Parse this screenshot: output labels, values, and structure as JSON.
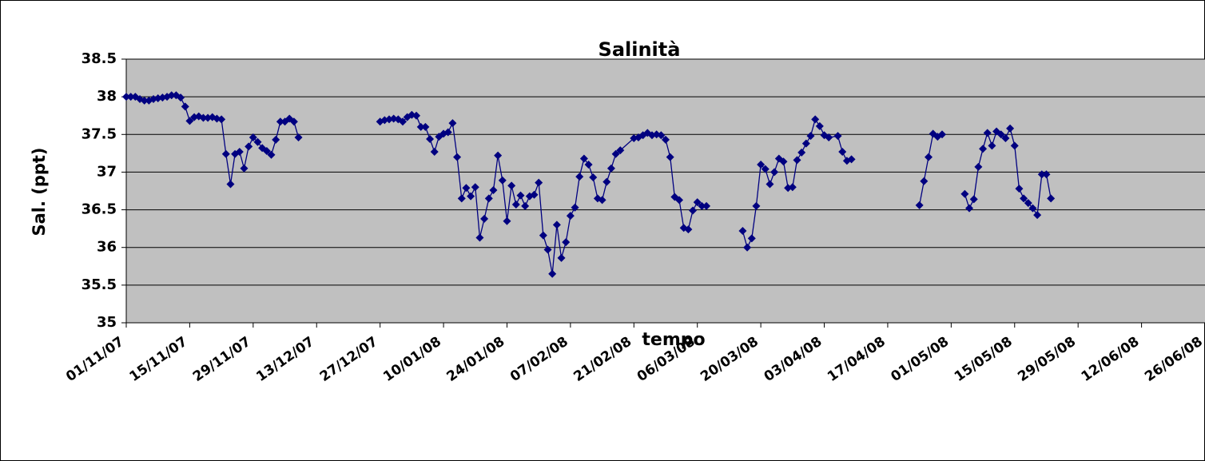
{
  "chart_data": {
    "type": "line",
    "title": "Salinità",
    "x_label": "tempo",
    "y_label": "Sal. (ppt)",
    "color": "#000080",
    "marker": "diamond",
    "grid": true,
    "xlim": [
      "2007-11-01",
      "2008-06-26"
    ],
    "xticks": [
      {
        "value": "2007-11-01",
        "label": "01/11/07"
      },
      {
        "value": "2007-11-15",
        "label": "15/11/07"
      },
      {
        "value": "2007-11-29",
        "label": "29/11/07"
      },
      {
        "value": "2007-12-13",
        "label": "13/12/07"
      },
      {
        "value": "2007-12-27",
        "label": "27/12/07"
      },
      {
        "value": "2008-01-10",
        "label": "10/01/08"
      },
      {
        "value": "2008-01-24",
        "label": "24/01/08"
      },
      {
        "value": "2008-02-07",
        "label": "07/02/08"
      },
      {
        "value": "2008-02-21",
        "label": "21/02/08"
      },
      {
        "value": "2008-03-06",
        "label": "06/03/08"
      },
      {
        "value": "2008-03-20",
        "label": "20/03/08"
      },
      {
        "value": "2008-04-03",
        "label": "03/04/08"
      },
      {
        "value": "2008-04-17",
        "label": "17/04/08"
      },
      {
        "value": "2008-05-01",
        "label": "01/05/08"
      },
      {
        "value": "2008-05-15",
        "label": "15/05/08"
      },
      {
        "value": "2008-05-29",
        "label": "29/05/08"
      },
      {
        "value": "2008-06-12",
        "label": "12/06/08"
      },
      {
        "value": "2008-06-26",
        "label": "26/06/08"
      }
    ],
    "ylim": [
      35,
      38.5
    ],
    "yticks": [
      35,
      35.5,
      36,
      36.5,
      37,
      37.5,
      38,
      38.5
    ],
    "x": [
      "2007-11-01",
      "2007-11-02",
      "2007-11-03",
      "2007-11-04",
      "2007-11-05",
      "2007-11-06",
      "2007-11-07",
      "2007-11-08",
      "2007-11-09",
      "2007-11-10",
      "2007-11-11",
      "2007-11-12",
      "2007-11-13",
      "2007-11-14",
      "2007-11-15",
      "2007-11-16",
      "2007-11-17",
      "2007-11-18",
      "2007-11-19",
      "2007-11-20",
      "2007-11-21",
      "2007-11-22",
      "2007-11-23",
      "2007-11-24",
      "2007-11-25",
      "2007-11-26",
      "2007-11-27",
      "2007-11-28",
      "2007-11-29",
      "2007-11-30",
      "2007-12-01",
      "2007-12-02",
      "2007-12-03",
      "2007-12-04",
      "2007-12-05",
      "2007-12-06",
      "2007-12-07",
      "2007-12-08",
      "2007-12-09",
      "2007-12-18",
      "2007-12-27",
      "2007-12-28",
      "2007-12-29",
      "2007-12-30",
      "2007-12-31",
      "2008-01-01",
      "2008-01-02",
      "2008-01-03",
      "2008-01-04",
      "2008-01-05",
      "2008-01-06",
      "2008-01-07",
      "2008-01-08",
      "2008-01-09",
      "2008-01-10",
      "2008-01-11",
      "2008-01-12",
      "2008-01-13",
      "2008-01-14",
      "2008-01-15",
      "2008-01-16",
      "2008-01-17",
      "2008-01-18",
      "2008-01-19",
      "2008-01-20",
      "2008-01-21",
      "2008-01-22",
      "2008-01-23",
      "2008-01-24",
      "2008-01-25",
      "2008-01-26",
      "2008-01-27",
      "2008-01-28",
      "2008-01-29",
      "2008-01-30",
      "2008-01-31",
      "2008-02-01",
      "2008-02-02",
      "2008-02-03",
      "2008-02-04",
      "2008-02-05",
      "2008-02-06",
      "2008-02-07",
      "2008-02-08",
      "2008-02-09",
      "2008-02-10",
      "2008-02-11",
      "2008-02-12",
      "2008-02-13",
      "2008-02-14",
      "2008-02-15",
      "2008-02-16",
      "2008-02-17",
      "2008-02-18",
      "2008-02-21",
      "2008-02-22",
      "2008-02-23",
      "2008-02-24",
      "2008-02-25",
      "2008-02-26",
      "2008-02-27",
      "2008-02-28",
      "2008-02-29",
      "2008-03-01",
      "2008-03-02",
      "2008-03-03",
      "2008-03-04",
      "2008-03-05",
      "2008-03-06",
      "2008-03-07",
      "2008-03-08",
      "2008-03-12",
      "2008-03-16",
      "2008-03-17",
      "2008-03-18",
      "2008-03-19",
      "2008-03-20",
      "2008-03-21",
      "2008-03-22",
      "2008-03-23",
      "2008-03-24",
      "2008-03-25",
      "2008-03-26",
      "2008-03-27",
      "2008-03-28",
      "2008-03-29",
      "2008-03-30",
      "2008-03-31",
      "2008-04-01",
      "2008-04-02",
      "2008-04-03",
      "2008-04-04",
      "2008-04-06",
      "2008-04-07",
      "2008-04-08",
      "2008-04-09",
      "2008-04-16",
      "2008-04-24",
      "2008-04-25",
      "2008-04-26",
      "2008-04-27",
      "2008-04-28",
      "2008-04-29",
      "2008-05-02",
      "2008-05-04",
      "2008-05-05",
      "2008-05-06",
      "2008-05-07",
      "2008-05-08",
      "2008-05-09",
      "2008-05-10",
      "2008-05-11",
      "2008-05-12",
      "2008-05-13",
      "2008-05-14",
      "2008-05-15",
      "2008-05-16",
      "2008-05-17",
      "2008-05-18",
      "2008-05-19",
      "2008-05-20",
      "2008-05-21",
      "2008-05-22",
      "2008-05-23"
    ],
    "values": [
      38.0,
      38.0,
      38.0,
      37.97,
      37.95,
      37.95,
      37.97,
      37.98,
      37.99,
      38.0,
      38.02,
      38.02,
      37.99,
      37.87,
      37.68,
      37.73,
      37.74,
      37.72,
      37.72,
      37.73,
      37.71,
      37.7,
      37.24,
      36.84,
      37.24,
      37.27,
      37.05,
      37.34,
      37.46,
      37.4,
      37.32,
      37.28,
      37.23,
      37.43,
      37.67,
      37.67,
      37.71,
      37.67,
      37.46,
      null,
      37.67,
      37.69,
      37.7,
      37.71,
      37.7,
      37.67,
      37.73,
      37.76,
      37.75,
      37.6,
      37.6,
      37.44,
      37.27,
      37.47,
      37.51,
      37.53,
      37.65,
      37.2,
      36.65,
      36.79,
      36.68,
      36.8,
      36.13,
      36.38,
      36.65,
      36.76,
      37.22,
      36.89,
      36.35,
      36.82,
      36.57,
      36.69,
      36.55,
      36.68,
      36.7,
      36.86,
      36.16,
      35.97,
      35.65,
      36.3,
      35.86,
      36.07,
      36.42,
      36.53,
      36.94,
      37.18,
      37.1,
      36.93,
      36.65,
      36.63,
      36.87,
      37.05,
      37.24,
      37.29,
      37.45,
      37.46,
      37.49,
      37.52,
      37.49,
      37.5,
      37.49,
      37.43,
      37.2,
      36.67,
      36.63,
      36.26,
      36.24,
      36.49,
      36.6,
      36.55,
      36.55,
      null,
      36.22,
      36.0,
      36.12,
      36.55,
      37.1,
      37.04,
      36.84,
      37.0,
      37.18,
      37.14,
      36.79,
      36.8,
      37.16,
      37.26,
      37.38,
      37.48,
      37.7,
      37.61,
      37.49,
      37.46,
      37.48,
      37.27,
      37.15,
      37.17,
      null,
      36.56,
      36.88,
      37.2,
      37.51,
      37.47,
      37.5,
      null,
      36.71,
      36.52,
      36.64,
      37.07,
      37.31,
      37.52,
      37.35,
      37.54,
      37.5,
      37.45,
      37.58,
      37.35,
      36.78,
      36.65,
      36.59,
      36.52,
      36.43,
      36.97,
      36.97,
      36.65
    ]
  }
}
